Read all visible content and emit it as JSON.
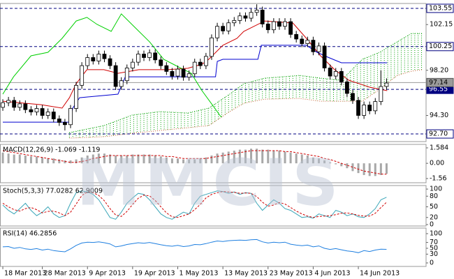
{
  "watermark": "MMCIS",
  "chart_data": [
    {
      "type": "candlestick",
      "xlim": [
        -0.5,
        75
      ],
      "ylim": [
        92.04,
        103.97
      ],
      "yticks": [
        102.15,
        {
          "value": 98.2,
          "label": "98.20"
        },
        {
          "value": 94.3,
          "label": "94.30"
        }
      ],
      "levels": [
        103.55,
        100.25,
        96.55,
        {
          "value": 92.7,
          "label": "92.70"
        }
      ],
      "level_color": "#000080",
      "current": 97.14,
      "current_color": "#9a9a9a",
      "up_color": "#ffffff",
      "down_color": "#000000",
      "open": [
        95.0,
        95.4,
        95.6,
        95.0,
        95.3,
        94.8,
        94.6,
        94.9,
        94.3,
        94.6,
        94.0,
        93.7,
        93.5,
        94.9,
        96.9,
        98.6,
        99.3,
        99.0,
        99.6,
        99.2,
        98.6,
        96.8,
        97.3,
        98.4,
        98.9,
        99.6,
        99.3,
        99.7,
        99.1,
        98.6,
        98.1,
        97.7,
        98.3,
        97.6,
        97.9,
        98.9,
        98.6,
        99.4,
        101.0,
        102.0,
        101.6,
        102.3,
        102.5,
        102.9,
        102.7,
        103.2,
        103.4,
        102.2,
        101.7,
        102.4,
        102.0,
        102.4,
        101.3,
        100.9,
        100.5,
        100.8,
        99.8,
        100.3,
        98.4,
        97.7,
        98.1,
        97.2,
        96.2,
        95.6,
        94.3,
        95.2,
        94.7,
        95.5,
        96.8
      ],
      "high": [
        95.7,
        95.9,
        95.9,
        95.6,
        95.6,
        95.1,
        95.2,
        95.2,
        94.9,
        94.9,
        94.3,
        94.0,
        95.2,
        97.2,
        98.9,
        99.6,
        99.6,
        99.9,
        99.9,
        99.5,
        98.9,
        97.6,
        98.7,
        99.2,
        99.9,
        99.9,
        100.0,
        100.0,
        99.4,
        98.9,
        98.4,
        98.6,
        98.6,
        98.2,
        99.2,
        99.2,
        99.7,
        101.3,
        102.3,
        102.3,
        102.6,
        102.8,
        103.2,
        103.2,
        103.5,
        103.9,
        103.7,
        102.5,
        102.7,
        102.7,
        102.7,
        102.7,
        101.6,
        101.2,
        101.1,
        101.1,
        100.6,
        100.6,
        98.7,
        98.4,
        98.4,
        97.5,
        96.5,
        95.9,
        95.5,
        95.5,
        95.8,
        98.2,
        97.5
      ],
      "low": [
        94.7,
        95.1,
        94.7,
        94.7,
        94.5,
        94.3,
        94.3,
        94.0,
        94.0,
        93.7,
        93.4,
        93.0,
        93.2,
        94.6,
        96.6,
        98.3,
        98.7,
        98.7,
        98.9,
        98.3,
        96.5,
        96.5,
        97.0,
        98.1,
        98.6,
        99.0,
        99.0,
        98.8,
        98.3,
        97.8,
        97.4,
        97.4,
        97.3,
        97.3,
        97.6,
        98.3,
        98.3,
        99.1,
        100.7,
        101.3,
        101.3,
        102.0,
        102.2,
        102.4,
        102.4,
        102.9,
        101.9,
        101.4,
        101.4,
        101.7,
        101.7,
        101.0,
        100.6,
        100.2,
        100.2,
        99.5,
        99.5,
        98.1,
        97.4,
        97.4,
        96.9,
        95.9,
        95.3,
        94.0,
        94.0,
        94.4,
        94.4,
        95.2,
        96.5
      ],
      "close": [
        95.4,
        95.6,
        95.0,
        95.3,
        94.8,
        94.6,
        94.9,
        94.3,
        94.6,
        94.0,
        93.7,
        93.5,
        94.9,
        96.9,
        98.6,
        99.3,
        99.0,
        99.6,
        99.2,
        98.6,
        96.8,
        97.3,
        98.4,
        98.9,
        99.6,
        99.3,
        99.7,
        99.1,
        98.6,
        98.1,
        97.7,
        98.3,
        97.6,
        97.9,
        98.9,
        98.6,
        99.4,
        101.0,
        102.0,
        101.6,
        102.3,
        102.5,
        102.9,
        102.7,
        103.2,
        103.4,
        102.2,
        101.7,
        102.4,
        102.0,
        102.4,
        101.3,
        100.9,
        100.5,
        100.8,
        99.8,
        100.3,
        98.4,
        97.7,
        98.1,
        97.2,
        96.2,
        95.6,
        94.3,
        95.2,
        94.7,
        95.5,
        96.8,
        97.1
      ],
      "cloud": {
        "x": [
          11.8,
          17.9,
          22.9,
          27.8,
          32.8,
          36.5,
          40.2,
          42.7,
          46.4,
          52.6,
          56.3,
          60.0,
          63.7,
          66.8,
          69.9,
          72.4,
          74.3
        ],
        "span_a": [
          92.82,
          93.42,
          94.33,
          94.63,
          94.51,
          94.93,
          96.14,
          97.04,
          97.52,
          97.76,
          97.52,
          97.34,
          99.15,
          99.75,
          100.66,
          101.38,
          101.38
        ],
        "span_b": [
          92.34,
          92.46,
          92.76,
          93.0,
          93.24,
          93.42,
          94.63,
          95.35,
          95.71,
          95.77,
          95.53,
          95.53,
          95.53,
          96.56,
          97.76,
          98.12,
          98.25
        ],
        "color_a": "#00a000",
        "color_b": "#c05a28"
      },
      "series": [
        {
          "color": "#d00000",
          "style": "solid",
          "x": [
            0,
            6.8,
            10.5,
            11.8,
            13.0,
            14.9,
            17.9,
            20.4,
            24.1,
            29.1,
            32.8,
            35.3,
            36.5,
            39.0,
            41.5,
            42.7,
            46.4,
            51.4,
            53.8,
            56.3,
            58.8,
            61.3,
            65.0,
            68.1
          ],
          "values": [
            95.53,
            95.23,
            94.93,
            95.83,
            97.04,
            98.25,
            98.25,
            97.94,
            98.25,
            98.25,
            98.37,
            98.73,
            99.15,
            100.36,
            100.96,
            101.56,
            102.46,
            102.28,
            100.96,
            99.45,
            98.25,
            97.34,
            96.74,
            96.44
          ]
        },
        {
          "color": "#0000d0",
          "style": "solid",
          "x": [
            0,
            11.8,
            12.4,
            13.6,
            20.4,
            21.7,
            37.7,
            38.0,
            39.0,
            45.2,
            45.8,
            53.8,
            55.7,
            57.6,
            60.0,
            68.1
          ],
          "values": [
            93.72,
            93.72,
            94.93,
            95.83,
            96.14,
            97.64,
            97.64,
            98.97,
            99.15,
            99.15,
            100.36,
            100.36,
            99.75,
            99.33,
            98.85,
            98.85
          ]
        },
        {
          "color": "#00d000",
          "style": "solid",
          "x": [
            0,
            1.9,
            5.0,
            8.0,
            10.5,
            13.0,
            14.9,
            16.7,
            19.2,
            21.0,
            23.5,
            26.0,
            28.5,
            30.9,
            33.4,
            35.3,
            37.1,
            38.7
          ],
          "values": [
            96.14,
            97.64,
            99.45,
            99.75,
            100.96,
            102.46,
            102.77,
            102.16,
            101.56,
            103.07,
            101.86,
            100.66,
            99.15,
            98.55,
            97.94,
            96.44,
            95.23,
            94.15
          ]
        }
      ]
    },
    {
      "type": "indicator",
      "title": "MACD(12,26,9) -1.069 -1.119",
      "xlim": [
        -0.5,
        75
      ],
      "ylim": [
        -1.99,
        1.94
      ],
      "yticks": [
        1.584,
        {
          "value": 0,
          "label": "0.00"
        },
        -1.56
      ],
      "series": [
        {
          "kind": "bar",
          "color": "#a8a8a8",
          "values": [
            1.1,
            1.0,
            0.9,
            0.9,
            0.8,
            0.7,
            0.7,
            0.6,
            0.5,
            0.5,
            0.4,
            0.3,
            0.3,
            0.4,
            0.6,
            0.8,
            0.9,
            1.0,
            1.0,
            0.9,
            0.8,
            0.8,
            0.8,
            0.9,
            0.9,
            0.9,
            0.9,
            0.8,
            0.7,
            0.6,
            0.5,
            0.5,
            0.4,
            0.4,
            0.4,
            0.5,
            0.6,
            0.8,
            1.0,
            1.1,
            1.2,
            1.3,
            1.4,
            1.4,
            1.5,
            1.5,
            1.4,
            1.4,
            1.3,
            1.3,
            1.2,
            1.1,
            1.0,
            0.9,
            0.8,
            0.6,
            0.5,
            0.3,
            0.1,
            -0.1,
            -0.3,
            -0.5,
            -0.8,
            -1.0,
            -1.2,
            -1.3,
            -1.3,
            -1.2,
            -1.069
          ]
        },
        {
          "kind": "line",
          "style": "dashed",
          "color": "#d00000",
          "values": [
            1.3,
            1.2,
            1.1,
            1.0,
            0.9,
            0.8,
            0.7,
            0.6,
            0.5,
            0.4,
            0.3,
            0.2,
            0.1,
            0.1,
            0.2,
            0.3,
            0.5,
            0.6,
            0.7,
            0.8,
            0.8,
            0.8,
            0.8,
            0.8,
            0.8,
            0.8,
            0.8,
            0.8,
            0.8,
            0.7,
            0.7,
            0.6,
            0.5,
            0.5,
            0.5,
            0.5,
            0.5,
            0.6,
            0.7,
            0.8,
            0.9,
            1.0,
            1.1,
            1.2,
            1.3,
            1.3,
            1.3,
            1.3,
            1.3,
            1.3,
            1.2,
            1.2,
            1.1,
            1.0,
            0.9,
            0.8,
            0.7,
            0.5,
            0.4,
            0.2,
            0.0,
            -0.2,
            -0.4,
            -0.6,
            -0.8,
            -0.9,
            -1.0,
            -1.1,
            -1.119
          ]
        }
      ]
    },
    {
      "type": "indicator",
      "title": "Stoch(5,3,3) 77.0282 62.9009",
      "xlim": [
        -0.5,
        75
      ],
      "ylim": [
        -4,
        110
      ],
      "yticks": [
        100,
        80,
        50,
        20,
        0
      ],
      "series": [
        {
          "kind": "line",
          "style": "solid",
          "color": "#3aa6b8",
          "values": [
            55,
            40,
            30,
            45,
            60,
            40,
            25,
            35,
            50,
            30,
            20,
            25,
            60,
            90,
            95,
            92,
            85,
            70,
            45,
            20,
            15,
            35,
            60,
            75,
            88,
            85,
            70,
            50,
            30,
            20,
            15,
            25,
            35,
            30,
            60,
            80,
            85,
            90,
            95,
            93,
            88,
            92,
            85,
            90,
            88,
            60,
            40,
            55,
            70,
            60,
            45,
            40,
            30,
            20,
            22,
            18,
            30,
            25,
            20,
            40,
            35,
            25,
            30,
            22,
            20,
            30,
            45,
            70,
            77.0282
          ]
        },
        {
          "kind": "line",
          "style": "dashed",
          "color": "#d00000",
          "values": [
            60,
            50,
            42,
            38,
            45,
            48,
            42,
            33,
            37,
            38,
            33,
            25,
            35,
            58,
            82,
            92,
            90,
            82,
            67,
            45,
            27,
            23,
            37,
            57,
            74,
            83,
            81,
            68,
            50,
            33,
            22,
            20,
            25,
            30,
            42,
            57,
            75,
            85,
            90,
            93,
            92,
            91,
            88,
            89,
            88,
            79,
            63,
            52,
            55,
            62,
            58,
            48,
            38,
            30,
            24,
            20,
            23,
            24,
            25,
            28,
            32,
            33,
            30,
            26,
            24,
            24,
            32,
            48,
            62.9009
          ]
        }
      ]
    },
    {
      "type": "indicator",
      "title": "RSI(14) 46.2856",
      "xlim": [
        -0.5,
        75
      ],
      "ylim": [
        -12,
        119
      ],
      "yticks": [
        100,
        70,
        50,
        30,
        0
      ],
      "xticks": [
        {
          "value": 0,
          "label": "18 Mar 2013"
        },
        {
          "value": 7,
          "label": "28 Mar 2013"
        },
        {
          "value": 15,
          "label": "9 Apr 2013"
        },
        {
          "value": 23,
          "label": "19 Apr 2013"
        },
        {
          "value": 31,
          "label": "1 May 2013"
        },
        {
          "value": 39,
          "label": "13 May 2013"
        },
        {
          "value": 47,
          "label": "23 May 2013"
        },
        {
          "value": 55,
          "label": "4 Jun 2013"
        },
        {
          "value": 63,
          "label": "14 Jun 2013"
        }
      ],
      "series": [
        {
          "kind": "line",
          "style": "solid",
          "color": "#1e7fe0",
          "values": [
            55,
            56,
            50,
            53,
            48,
            46,
            49,
            44,
            47,
            42,
            40,
            38,
            48,
            60,
            68,
            71,
            70,
            72,
            69,
            65,
            55,
            58,
            63,
            66,
            69,
            67,
            70,
            66,
            62,
            59,
            57,
            60,
            56,
            58,
            63,
            62,
            66,
            71,
            75,
            73,
            76,
            77,
            78,
            77,
            79,
            80,
            72,
            68,
            71,
            69,
            71,
            64,
            61,
            59,
            61,
            55,
            58,
            50,
            46,
            49,
            45,
            41,
            39,
            35,
            42,
            39,
            44,
            47,
            46.2856
          ]
        }
      ]
    }
  ]
}
